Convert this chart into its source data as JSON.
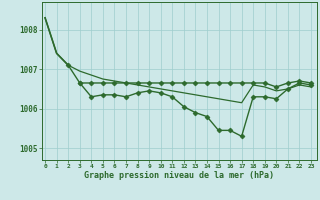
{
  "x": [
    0,
    1,
    2,
    3,
    4,
    5,
    6,
    7,
    8,
    9,
    10,
    11,
    12,
    13,
    14,
    15,
    16,
    17,
    18,
    19,
    20,
    21,
    22,
    23
  ],
  "line_steep": [
    1008.3,
    1007.4,
    1007.1,
    null,
    null,
    null,
    null,
    null,
    null,
    null,
    null,
    null,
    null,
    null,
    null,
    null,
    null,
    null,
    null,
    null,
    null,
    null,
    null,
    null
  ],
  "line_diag": [
    1008.3,
    1007.4,
    1007.1,
    1006.95,
    1006.85,
    1006.75,
    1006.7,
    1006.65,
    1006.6,
    1006.55,
    1006.5,
    1006.45,
    1006.4,
    1006.35,
    1006.3,
    1006.25,
    1006.2,
    1006.15,
    1006.6,
    1006.55,
    1006.45,
    1006.5,
    1006.6,
    1006.55
  ],
  "line_flat": [
    null,
    null,
    null,
    1006.65,
    1006.65,
    1006.65,
    1006.65,
    1006.65,
    1006.65,
    1006.65,
    1006.65,
    1006.65,
    1006.65,
    1006.65,
    1006.65,
    1006.65,
    1006.65,
    1006.65,
    1006.65,
    1006.65,
    1006.55,
    1006.65,
    1006.7,
    1006.65
  ],
  "line_dip": [
    null,
    null,
    1007.1,
    1006.65,
    1006.3,
    1006.35,
    1006.35,
    1006.3,
    1006.4,
    1006.45,
    1006.4,
    1006.3,
    1006.05,
    1005.9,
    1005.8,
    1005.45,
    1005.45,
    1005.3,
    1006.3,
    1006.3,
    1006.25,
    1006.5,
    1006.65,
    1006.6
  ],
  "ylim": [
    1004.7,
    1008.7
  ],
  "yticks": [
    1005,
    1006,
    1007,
    1008
  ],
  "xticks": [
    0,
    1,
    2,
    3,
    4,
    5,
    6,
    7,
    8,
    9,
    10,
    11,
    12,
    13,
    14,
    15,
    16,
    17,
    18,
    19,
    20,
    21,
    22,
    23
  ],
  "xlabel": "Graphe pression niveau de la mer (hPa)",
  "line_color": "#2d6a2d",
  "bg_color": "#cde8e8",
  "grid_color": "#9ecece",
  "tick_label_color": "#2d6a2d",
  "xlabel_color": "#2d6a2d",
  "xlim_left": -0.3,
  "xlim_right": 23.5
}
